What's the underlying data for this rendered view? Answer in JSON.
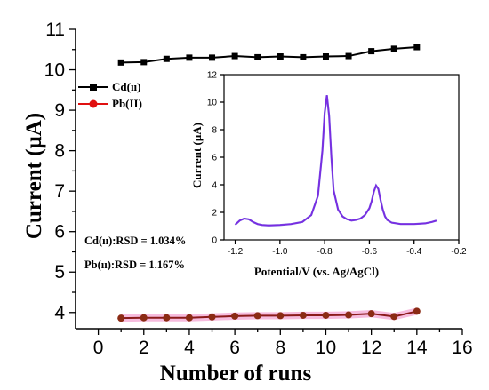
{
  "chart_data": [
    {
      "type": "line",
      "xlabel": "Number of runs",
      "ylabel": "Current (μA)",
      "xlim": [
        -1,
        16
      ],
      "ylim": [
        3.6,
        11.0
      ],
      "x_ticks": [
        0,
        2,
        4,
        6,
        8,
        10,
        12,
        14,
        16
      ],
      "y_ticks": [
        4,
        5,
        6,
        7,
        8,
        9,
        10,
        11
      ],
      "x": [
        1,
        2,
        3,
        4,
        5,
        6,
        7,
        8,
        9,
        10,
        11,
        12,
        13,
        14
      ],
      "series": [
        {
          "name": "Cd(ıı)",
          "color": "#000000",
          "marker": "square",
          "values": [
            10.18,
            10.19,
            10.27,
            10.3,
            10.3,
            10.34,
            10.31,
            10.33,
            10.31,
            10.33,
            10.34,
            10.46,
            10.52,
            10.56
          ]
        },
        {
          "name": "Pb(II)",
          "color": "#e01010",
          "marker": "circle",
          "values": [
            3.86,
            3.87,
            3.87,
            3.87,
            3.89,
            3.91,
            3.92,
            3.92,
            3.93,
            3.93,
            3.94,
            3.97,
            3.9,
            4.03
          ]
        }
      ],
      "legend": "top-left",
      "annotations": [
        "Cd(ıı):RSD = 1.034%",
        "Pb(ıı):RSD = 1.167%"
      ]
    },
    {
      "type": "line",
      "xlabel": "Potential/V (vs. Ag/AgCl)",
      "ylabel": "Current (μA)",
      "xlim": [
        -1.25,
        -0.2
      ],
      "ylim": [
        0,
        12
      ],
      "x_ticks": [
        -1.2,
        -1.0,
        -0.8,
        -0.6,
        -0.4,
        -0.2
      ],
      "x_tick_labels": [
        "-1.2",
        "-1.0",
        "-0.8",
        "-0.6",
        "-0.4",
        "-0.2"
      ],
      "y_ticks": [
        0,
        2,
        4,
        6,
        8,
        10,
        12
      ],
      "color": "#7a2be2",
      "x": [
        -1.2,
        -1.18,
        -1.16,
        -1.14,
        -1.12,
        -1.1,
        -1.08,
        -1.05,
        -1.0,
        -0.95,
        -0.9,
        -0.86,
        -0.83,
        -0.81,
        -0.8,
        -0.79,
        -0.78,
        -0.77,
        -0.76,
        -0.74,
        -0.72,
        -0.7,
        -0.68,
        -0.66,
        -0.64,
        -0.62,
        -0.6,
        -0.59,
        -0.58,
        -0.57,
        -0.56,
        -0.55,
        -0.54,
        -0.53,
        -0.52,
        -0.5,
        -0.46,
        -0.4,
        -0.35,
        -0.32,
        -0.3
      ],
      "values": [
        1.1,
        1.4,
        1.55,
        1.5,
        1.3,
        1.15,
        1.08,
        1.05,
        1.08,
        1.15,
        1.3,
        1.8,
        3.2,
        6.5,
        9.2,
        10.5,
        9.0,
        6.0,
        3.6,
        2.2,
        1.7,
        1.5,
        1.4,
        1.45,
        1.55,
        1.8,
        2.3,
        2.8,
        3.5,
        3.95,
        3.7,
        2.9,
        2.2,
        1.7,
        1.45,
        1.25,
        1.15,
        1.15,
        1.2,
        1.3,
        1.4
      ]
    }
  ]
}
